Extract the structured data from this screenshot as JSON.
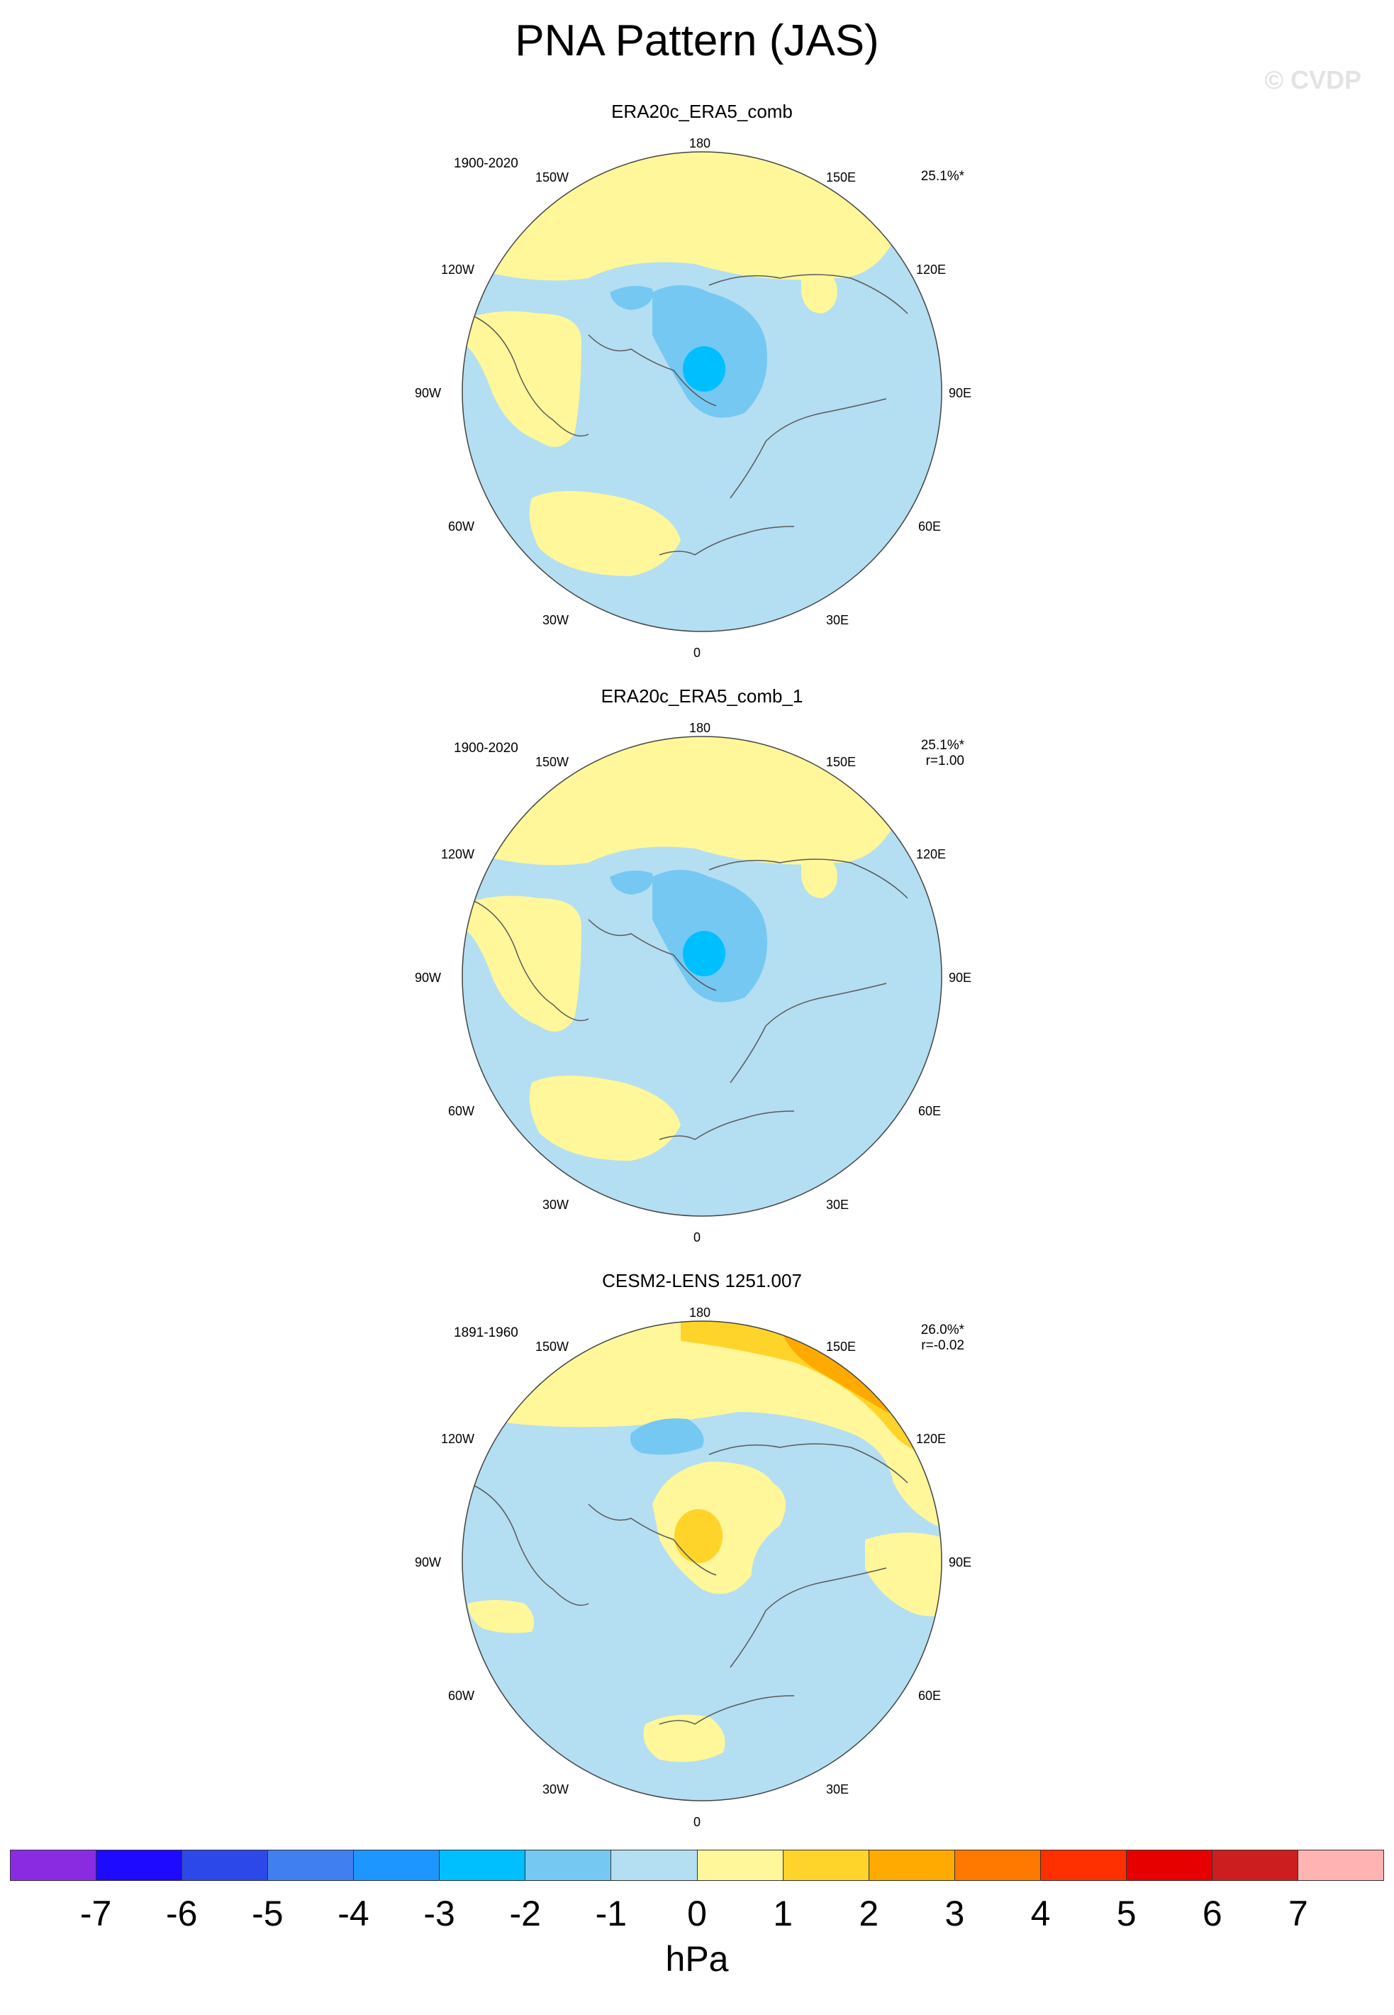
{
  "title": "PNA Pattern (JAS)",
  "watermark": "© CVDP",
  "longitude_labels": {
    "top": "180",
    "top_left": "150W",
    "top_right": "150E",
    "upper_left": "120W",
    "upper_right": "120E",
    "left": "90W",
    "right": "90E",
    "lower_left": "60W",
    "lower_right": "60E",
    "bottom_left": "30W",
    "bottom_right": "30E",
    "bottom": "0"
  },
  "panels": [
    {
      "name": "ERA20c_ERA5_comb",
      "period": "1900-2020",
      "variance": "25.1%*",
      "corr": ""
    },
    {
      "name": "ERA20c_ERA5_comb_1",
      "period": "1900-2020",
      "variance": "25.1%*",
      "corr": "r=1.00"
    },
    {
      "name": "CESM2-LENS 1251.007",
      "period": "1891-1960",
      "variance": "26.0%*",
      "corr": "r=-0.02"
    }
  ],
  "colorbar": {
    "units": "hPa",
    "labels": [
      "-7",
      "-6",
      "-5",
      "-4",
      "-3",
      "-2",
      "-1",
      "0",
      "1",
      "2",
      "3",
      "4",
      "5",
      "6",
      "7"
    ],
    "colors": [
      "#8a2be2",
      "#1e0aff",
      "#2c48e8",
      "#3f7ff0",
      "#1e96ff",
      "#00bfff",
      "#75c8f2",
      "#b4def2",
      "#fff799",
      "#ffd42a",
      "#ffaa00",
      "#ff7800",
      "#ff3000",
      "#e60000",
      "#cc1e1e",
      "#ffb3b3"
    ]
  }
}
